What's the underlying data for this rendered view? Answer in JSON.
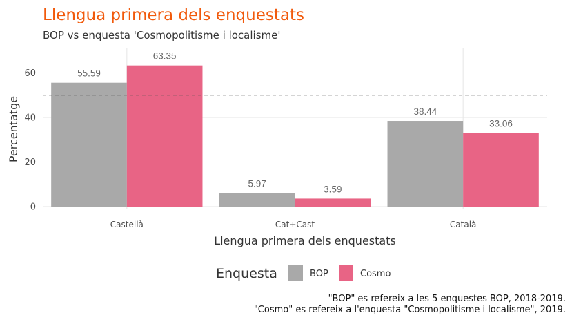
{
  "chart_data": {
    "type": "bar",
    "title": "Llengua primera dels enquestats",
    "subtitle": "BOP vs enquesta 'Cosmopolitisme i localisme'",
    "xlabel": "Llengua primera dels enquestats",
    "ylabel": "Percentatge",
    "categories": [
      "Castellà",
      "Cat+Cast",
      "Català"
    ],
    "series": [
      {
        "name": "BOP",
        "values": [
          55.59,
          5.97,
          38.44
        ],
        "labels": [
          "55.59",
          "5.97",
          "38.44"
        ],
        "color": "#a9a9a9"
      },
      {
        "name": "Cosmo",
        "values": [
          63.35,
          3.59,
          33.06
        ],
        "labels": [
          "63.35",
          "3.59",
          "33.06"
        ],
        "color": "#e86485"
      }
    ],
    "ylim": [
      0,
      71
    ],
    "yticks": [
      0,
      20,
      40,
      60
    ],
    "reference_line": {
      "y": 50,
      "style": "dashed",
      "color": "#555555"
    },
    "grid": true,
    "legend": {
      "title": "Enquesta",
      "position": "bottom"
    },
    "caption": [
      "\"BOP\" es refereix a les 5 enquestes BOP, 2018-2019.",
      "\"Cosmo\" es refereix a l'enquesta \"Cosmopolitisme i localisme\", 2019."
    ]
  }
}
